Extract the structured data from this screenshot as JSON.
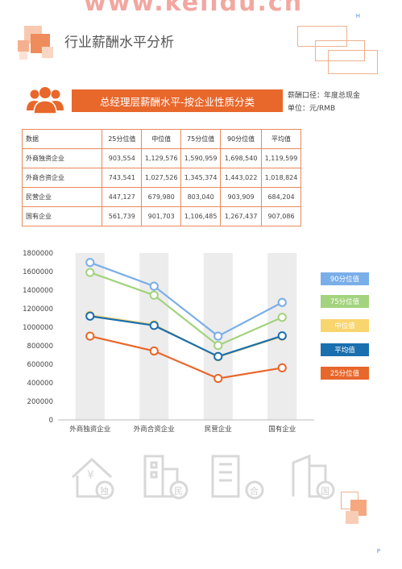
{
  "watermark": "www.kelidu.cn",
  "page_markers": {
    "top": "H",
    "bottom": "P"
  },
  "section_title": "行业薪酬水平分析",
  "banner_title": "总经理层薪酬水平-按企业性质分类",
  "meta": {
    "line1": "薪酬口径：年度总现金",
    "line2": "单位：元/RMB"
  },
  "table": {
    "headers": [
      "数据",
      "25分位值",
      "中位值",
      "75分位值",
      "90分位值",
      "平均值"
    ],
    "rows": [
      {
        "label": "外商独资企业",
        "values": [
          "903,554",
          "1,129,576",
          "1,590,959",
          "1,698,540",
          "1,119,599"
        ]
      },
      {
        "label": "外商合资企业",
        "values": [
          "743,541",
          "1,027,526",
          "1,345,374",
          "1,443,022",
          "1,018,824"
        ]
      },
      {
        "label": "民营企业",
        "values": [
          "447,127",
          "679,980",
          "803,040",
          "903,909",
          "684,204"
        ]
      },
      {
        "label": "国有企业",
        "values": [
          "561,739",
          "901,703",
          "1,106,485",
          "1,267,437",
          "907,086"
        ]
      }
    ]
  },
  "chart_data": {
    "type": "line",
    "categories": [
      "外商独资企业",
      "外商合资企业",
      "民营企业",
      "国有企业"
    ],
    "ylim": [
      0,
      1800000
    ],
    "yticks": [
      "0",
      "200000",
      "400000",
      "600000",
      "800000",
      "1000000",
      "1200000",
      "1400000",
      "1600000",
      "1800000"
    ],
    "grid": false,
    "legend_position": "right",
    "series": [
      {
        "name": "90分位值",
        "color": "#7aaee8",
        "values": [
          1698540,
          1443022,
          903909,
          1267437
        ]
      },
      {
        "name": "75分位值",
        "color": "#a3d37e",
        "values": [
          1590959,
          1345374,
          803040,
          1106485
        ]
      },
      {
        "name": "中位值",
        "color": "#f9d56e",
        "values": [
          1129576,
          1027526,
          679980,
          901703
        ]
      },
      {
        "name": "平均值",
        "color": "#1a6fae",
        "values": [
          1119599,
          1018824,
          684204,
          907086
        ]
      },
      {
        "name": "25分位值",
        "color": "#e8672b",
        "values": [
          903554,
          743541,
          447127,
          561739
        ]
      }
    ]
  },
  "icon_labels": [
    "独",
    "民",
    "合",
    "国"
  ],
  "icon_symbols": {
    "dollar": "¥"
  },
  "colors": {
    "accent": "#e8672b",
    "table_border": "#e9895a"
  }
}
